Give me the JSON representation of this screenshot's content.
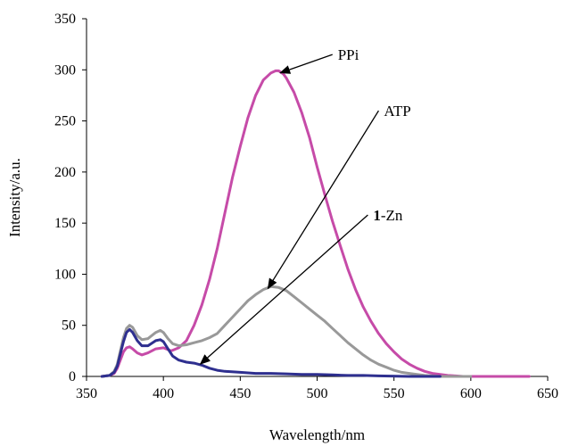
{
  "chart_data": {
    "type": "line",
    "xlabel": "Wavelength/nm",
    "ylabel": "Intensity/a.u.",
    "xlim": [
      350,
      650
    ],
    "ylim": [
      0,
      350
    ],
    "xticks": [
      350,
      400,
      450,
      500,
      550,
      600,
      650
    ],
    "yticks": [
      0,
      50,
      100,
      150,
      200,
      250,
      300,
      350
    ],
    "grid": false,
    "legend": "none",
    "series": [
      {
        "name": "PPi",
        "color": "#c64ba8",
        "x": [
          360,
          365,
          368,
          370,
          372,
          374,
          376,
          378,
          380,
          383,
          386,
          390,
          395,
          400,
          405,
          410,
          415,
          420,
          425,
          430,
          435,
          440,
          445,
          450,
          455,
          460,
          465,
          470,
          473,
          475,
          478,
          480,
          485,
          490,
          495,
          500,
          505,
          510,
          515,
          520,
          525,
          530,
          535,
          540,
          545,
          550,
          555,
          560,
          565,
          570,
          575,
          580,
          585,
          590,
          595,
          600,
          605,
          610,
          615,
          620,
          630,
          638
        ],
        "y": [
          0,
          1,
          3,
          8,
          16,
          24,
          28,
          29,
          27,
          23,
          21,
          23,
          27,
          28,
          25,
          28,
          35,
          50,
          70,
          95,
          125,
          160,
          195,
          225,
          253,
          275,
          290,
          297,
          299,
          299,
          296,
          292,
          278,
          258,
          234,
          205,
          178,
          152,
          128,
          105,
          85,
          68,
          54,
          42,
          32,
          24,
          17,
          12,
          8,
          5,
          3,
          2,
          1,
          0.5,
          0,
          0,
          0,
          0,
          0,
          0,
          0,
          0
        ]
      },
      {
        "name": "ATP",
        "color": "#999999",
        "x": [
          360,
          365,
          368,
          370,
          372,
          374,
          376,
          378,
          380,
          383,
          386,
          390,
          395,
          398,
          400,
          403,
          406,
          410,
          415,
          420,
          425,
          430,
          435,
          440,
          445,
          450,
          455,
          460,
          465,
          470,
          475,
          480,
          485,
          490,
          495,
          500,
          505,
          510,
          515,
          520,
          525,
          530,
          535,
          540,
          545,
          550,
          555,
          560,
          565,
          570,
          575,
          580,
          585,
          590,
          600
        ],
        "y": [
          0,
          1,
          5,
          12,
          25,
          38,
          47,
          50,
          48,
          40,
          36,
          37,
          43,
          45,
          43,
          37,
          32,
          30,
          31,
          33,
          35,
          38,
          42,
          50,
          58,
          66,
          74,
          80,
          85,
          88,
          87,
          84,
          78,
          72,
          66,
          60,
          54,
          47,
          40,
          33,
          27,
          21,
          16,
          12,
          9,
          6,
          4,
          3,
          2,
          1,
          0.5,
          0,
          0,
          0,
          0
        ]
      },
      {
        "name": "1-Zn",
        "color": "#2e2f8f",
        "x": [
          360,
          365,
          368,
          370,
          372,
          374,
          376,
          378,
          380,
          383,
          386,
          390,
          395,
          398,
          400,
          403,
          406,
          410,
          415,
          420,
          425,
          430,
          435,
          440,
          450,
          460,
          470,
          480,
          490,
          500,
          510,
          520,
          530,
          540,
          560,
          580
        ],
        "y": [
          0,
          1,
          4,
          10,
          22,
          34,
          43,
          46,
          43,
          35,
          30,
          30,
          35,
          36,
          34,
          27,
          20,
          16,
          14,
          13,
          11,
          8,
          6,
          5,
          4,
          3,
          3,
          2.5,
          2,
          2,
          1.5,
          1,
          1,
          0.5,
          0,
          0
        ]
      }
    ],
    "annotations": [
      {
        "text": "PPi",
        "series": "PPi",
        "point": [
          476,
          297
        ],
        "label_at": [
          510,
          315
        ]
      },
      {
        "text": "ATP",
        "series": "ATP",
        "point": [
          468,
          86
        ],
        "label_at": [
          540,
          260
        ]
      },
      {
        "text": "1",
        "bold_prefix": true,
        "text_rest": "-Zn",
        "series": "1-Zn",
        "point": [
          424,
          12
        ],
        "label_at": [
          533,
          158
        ]
      }
    ]
  }
}
